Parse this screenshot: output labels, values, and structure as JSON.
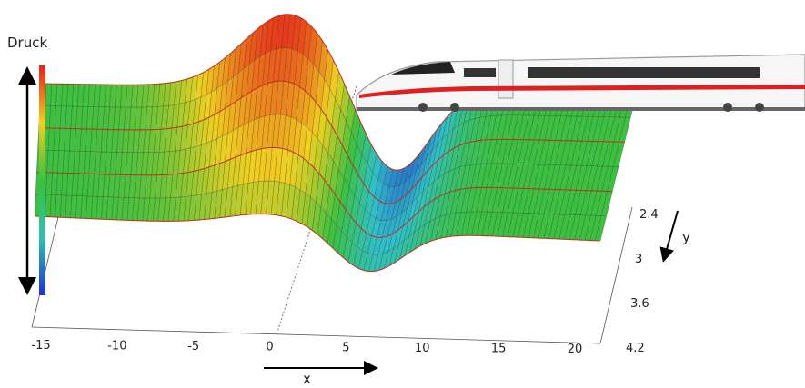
{
  "labels": {
    "pressure": "Druck",
    "x": "x",
    "y": "y"
  },
  "x_axis_ticks": [
    -15,
    -10,
    -5,
    0,
    5,
    10,
    15,
    20
  ],
  "y_axis_ticks": [
    2.4,
    3,
    3.6,
    4.2
  ]
}
